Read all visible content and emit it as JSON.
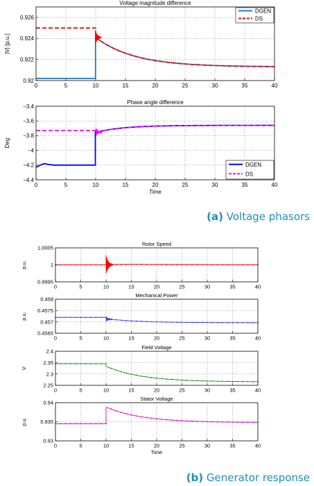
{
  "captions": {
    "a_prefix": "(a)",
    "a_text": " Voltage phasors",
    "b_prefix": "(b)",
    "b_text": " Generator response"
  },
  "chart_data": [
    {
      "type": "line",
      "title": "Voltage magnitude difference",
      "xlabel": "",
      "ylabel": "|V| [p.u.]",
      "xlim": [
        0,
        40
      ],
      "ylim": [
        0.92,
        0.927
      ],
      "xticks": [
        0,
        5,
        10,
        15,
        20,
        25,
        30,
        35,
        40
      ],
      "yticks": [
        0.92,
        0.922,
        0.924,
        0.926
      ],
      "grid": true,
      "legend": "top-right",
      "series": [
        {
          "name": "DGEN",
          "color": "#1f77c8",
          "style": "solid",
          "pre_x": [
            0,
            9.98
          ],
          "pre_y": [
            0.9202,
            0.9202
          ],
          "step_x": 9.98,
          "step_to": 0.924,
          "decay": {
            "start": 10.0,
            "end": 40,
            "y0": 0.9241,
            "y_inf": 0.9213,
            "tau": 6.5
          }
        },
        {
          "name": "DS",
          "color": "#ff0000",
          "style": "dashed",
          "pre_x": [
            0,
            10.0
          ],
          "pre_y": [
            0.925,
            0.925
          ],
          "decay": {
            "start": 10.0,
            "end": 40,
            "y0": 0.9241,
            "y_inf": 0.9213,
            "tau": 6.5
          }
        }
      ],
      "annotations": [
        {
          "type": "oscillation",
          "x": 10.2,
          "amplitude": 0.0006
        }
      ]
    },
    {
      "type": "line",
      "title": "Phase angle difference",
      "xlabel": "Time",
      "ylabel": "Deg",
      "xlim": [
        0,
        40
      ],
      "ylim": [
        -4.4,
        -3.4
      ],
      "xticks": [
        0,
        5,
        10,
        15,
        20,
        25,
        30,
        35,
        40
      ],
      "yticks": [
        -4.4,
        -4.2,
        -4,
        -3.8,
        -3.6,
        -3.4
      ],
      "grid": true,
      "legend": "bottom-right",
      "series": [
        {
          "name": "DGEN",
          "color": "#0000ff",
          "style": "solid",
          "points_x": [
            0,
            0.5,
            1,
            1.5,
            2,
            3,
            5,
            9.95
          ],
          "points_y": [
            -4.23,
            -4.21,
            -4.19,
            -4.18,
            -4.19,
            -4.2,
            -4.2,
            -4.2
          ],
          "step_x": 9.95,
          "step_to": -3.75,
          "decay": {
            "start": 10.3,
            "end": 40,
            "y0": -3.75,
            "y_inf": -3.66,
            "tau": 4.5
          }
        },
        {
          "name": "DS",
          "color": "#ff00ff",
          "style": "dashed",
          "pre_x": [
            0,
            10.3
          ],
          "pre_y": [
            -3.73,
            -3.73
          ],
          "decay": {
            "start": 10.3,
            "end": 40,
            "y0": -3.75,
            "y_inf": -3.66,
            "tau": 4.5
          }
        }
      ],
      "annotations": [
        {
          "type": "oscillation",
          "x": 10.3,
          "amplitude": 0.05
        }
      ]
    },
    {
      "type": "line",
      "title": "Rotor Speed",
      "xlabel": "",
      "ylabel": "p.u.",
      "xlim": [
        0,
        40
      ],
      "ylim": [
        0.9995,
        1.0005
      ],
      "xticks": [
        0,
        5,
        10,
        15,
        20,
        25,
        30,
        35,
        40
      ],
      "yticks": [
        0.9995,
        1,
        1.0005
      ],
      "grid": true,
      "series": [
        {
          "color": "#ff0000",
          "style": "solid",
          "marker": "dot",
          "constant": 1,
          "oscillation": {
            "x": 10,
            "amplitude": 0.00028,
            "duration": 1.4
          }
        }
      ]
    },
    {
      "type": "line",
      "title": "Mechanical Power",
      "xlabel": "",
      "ylabel": "p.u.",
      "xlim": [
        0,
        40
      ],
      "ylim": [
        0.4565,
        0.458
      ],
      "xticks": [
        0,
        5,
        10,
        15,
        20,
        25,
        30,
        35,
        40
      ],
      "yticks": [
        0.4565,
        0.457,
        0.4575,
        0.458
      ],
      "grid": true,
      "series": [
        {
          "color": "#3a3af0",
          "style": "solid",
          "marker": "dot",
          "pre_x": [
            0,
            10
          ],
          "pre_y": [
            0.4572,
            0.4572
          ],
          "oscillation": {
            "x": 10,
            "amplitude": 0.00012,
            "duration": 1.2
          },
          "decay": {
            "start": 10.6,
            "end": 40,
            "y0": 0.45712,
            "y_inf": 0.45696,
            "tau": 7
          }
        }
      ]
    },
    {
      "type": "line",
      "title": "Field Voltage",
      "xlabel": "",
      "ylabel": "V",
      "xlim": [
        0,
        40
      ],
      "ylim": [
        2.25,
        2.4
      ],
      "xticks": [
        0,
        5,
        10,
        15,
        20,
        25,
        30,
        35,
        40
      ],
      "yticks": [
        2.25,
        2.3,
        2.35,
        2.4
      ],
      "grid": true,
      "series": [
        {
          "color": "#1e8c1e",
          "style": "solid",
          "marker": "dot",
          "pre_x": [
            0,
            10
          ],
          "pre_y": [
            2.345,
            2.345
          ],
          "decay": {
            "start": 10,
            "end": 40,
            "y0": 2.334,
            "y_inf": 2.265,
            "tau": 7
          }
        }
      ]
    },
    {
      "type": "line",
      "title": "Stator Voltage",
      "xlabel": "Time",
      "ylabel": "p.u.",
      "xlim": [
        0,
        40
      ],
      "ylim": [
        0.93,
        0.94
      ],
      "xticks": [
        0,
        5,
        10,
        15,
        20,
        25,
        30,
        35,
        40
      ],
      "yticks": [
        0.93,
        0.935,
        0.94
      ],
      "grid": true,
      "series": [
        {
          "color": "#cc00cc",
          "style": "solid",
          "marker": "dot",
          "pre_x": [
            0,
            10
          ],
          "pre_y": [
            0.9345,
            0.9345
          ],
          "step_x": 10,
          "step_to": 0.9387,
          "decay": {
            "start": 10.3,
            "end": 40,
            "y0": 0.9387,
            "y_inf": 0.9348,
            "tau": 7
          }
        }
      ]
    }
  ]
}
